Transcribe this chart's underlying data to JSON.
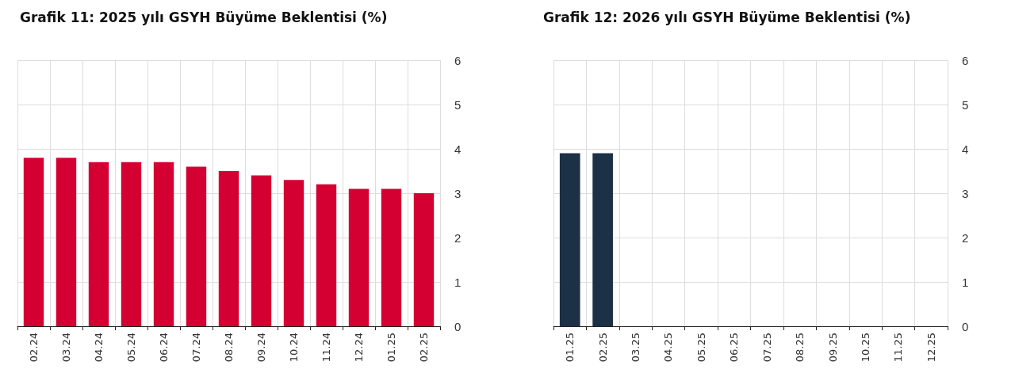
{
  "chart_data": [
    {
      "type": "bar",
      "title": "Grafik 11: 2025 yılı GSYH Büyüme Beklentisi (%)",
      "categories": [
        "02.24",
        "03.24",
        "04.24",
        "05.24",
        "06.24",
        "07.24",
        "08.24",
        "09.24",
        "10.24",
        "11.24",
        "12.24",
        "01.25",
        "02.25"
      ],
      "series": [
        {
          "color": "#d50032",
          "values": [
            3.8,
            3.8,
            3.7,
            3.7,
            3.7,
            3.6,
            3.5,
            3.4,
            3.3,
            3.2,
            3.1,
            3.1,
            3.0
          ]
        }
      ],
      "ylim": [
        0,
        6
      ],
      "yticks": [
        0,
        1,
        2,
        3,
        4,
        5,
        6
      ],
      "grid": true
    },
    {
      "type": "bar",
      "title": "Grafik 12: 2026 yılı GSYH Büyüme Beklentisi (%)",
      "categories": [
        "01.25",
        "02.25",
        "03.25",
        "04.25",
        "05.25",
        "06.25",
        "07.25",
        "08.25",
        "09.25",
        "10.25",
        "11.25",
        "12.25"
      ],
      "series": [
        {
          "color": "#1c3046",
          "values": [
            3.9,
            3.9,
            null,
            null,
            null,
            null,
            null,
            null,
            null,
            null,
            null,
            null
          ]
        }
      ],
      "ylim": [
        0,
        6
      ],
      "yticks": [
        0,
        1,
        2,
        3,
        4,
        5,
        6
      ],
      "grid": true
    }
  ]
}
